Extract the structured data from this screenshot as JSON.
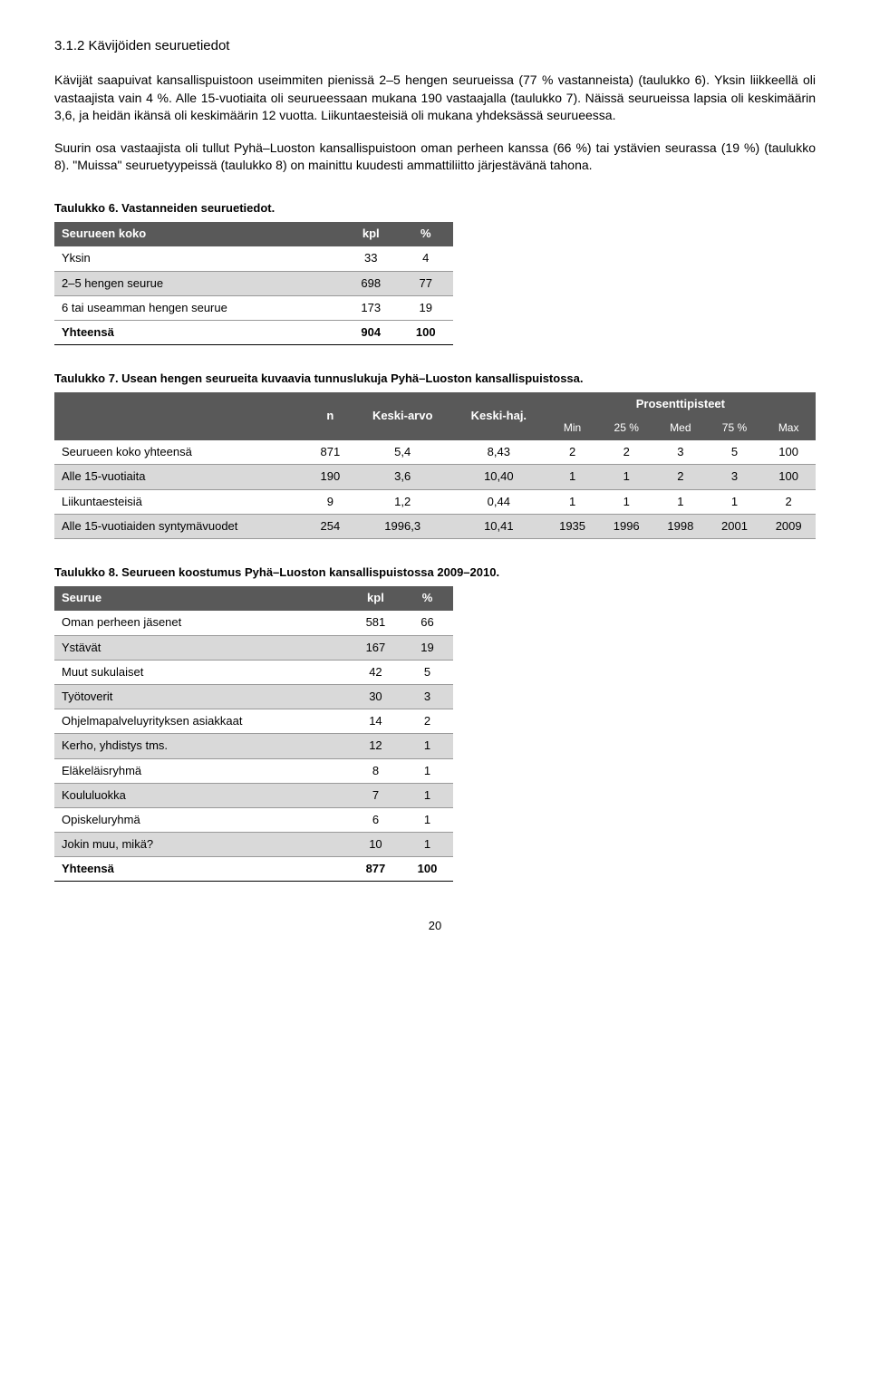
{
  "section": {
    "heading": "3.1.2 Kävijöiden seuruetiedot",
    "para1": "Kävijät saapuivat kansallispuistoon useimmiten pienissä 2–5 hengen seurueissa (77 % vastanneista) (taulukko 6). Yksin liikkeellä oli vastaajista vain 4 %. Alle 15-vuotiaita oli seurueessaan mukana 190 vastaajalla (taulukko 7). Näissä seurueissa lapsia oli keskimäärin 3,6, ja heidän ikänsä oli keskimäärin 12 vuotta. Liikuntaesteisiä oli mukana yhdeksässä seurueessa.",
    "para2": "Suurin osa vastaajista oli tullut Pyhä–Luoston kansallispuistoon oman perheen kanssa (66 %) tai ystävien seurassa (19 %) (taulukko 8). \"Muissa\" seuruetyypeissä (taulukko 8) on mainittu kuudesti ammattiliitto järjestävänä tahona."
  },
  "table6": {
    "caption": "Taulukko 6. Vastanneiden seuruetiedot.",
    "headers": [
      "Seurueen koko",
      "kpl",
      "%"
    ],
    "rows": [
      {
        "label": "Yksin",
        "kpl": "33",
        "pct": "4",
        "shade": false
      },
      {
        "label": "2–5 hengen seurue",
        "kpl": "698",
        "pct": "77",
        "shade": true
      },
      {
        "label": "6 tai useamman hengen seurue",
        "kpl": "173",
        "pct": "19",
        "shade": false
      }
    ],
    "total": {
      "label": "Yhteensä",
      "kpl": "904",
      "pct": "100"
    }
  },
  "table7": {
    "caption": "Taulukko 7. Usean hengen seurueita kuvaavia tunnuslukuja Pyhä–Luoston kansallispuistossa.",
    "top_headers": {
      "n": "n",
      "mean": "Keski-arvo",
      "sd": "Keski-haj.",
      "pct": "Prosenttipisteet"
    },
    "sub_headers": [
      "Min",
      "25 %",
      "Med",
      "75 %",
      "Max"
    ],
    "rows": [
      {
        "label": "Seurueen koko yhteensä",
        "n": "871",
        "mean": "5,4",
        "sd": "8,43",
        "min": "2",
        "p25": "2",
        "med": "3",
        "p75": "5",
        "max": "100",
        "shade": false
      },
      {
        "label": "Alle 15-vuotiaita",
        "n": "190",
        "mean": "3,6",
        "sd": "10,40",
        "min": "1",
        "p25": "1",
        "med": "2",
        "p75": "3",
        "max": "100",
        "shade": true
      },
      {
        "label": "Liikuntaesteisiä",
        "n": "9",
        "mean": "1,2",
        "sd": "0,44",
        "min": "1",
        "p25": "1",
        "med": "1",
        "p75": "1",
        "max": "2",
        "shade": false
      },
      {
        "label": "Alle 15-vuotiaiden syntymävuodet",
        "n": "254",
        "mean": "1996,3",
        "sd": "10,41",
        "min": "1935",
        "p25": "1996",
        "med": "1998",
        "p75": "2001",
        "max": "2009",
        "shade": true
      }
    ]
  },
  "table8": {
    "caption": "Taulukko 8. Seurueen koostumus Pyhä–Luoston kansallispuistossa 2009–2010.",
    "headers": [
      "Seurue",
      "kpl",
      "%"
    ],
    "rows": [
      {
        "label": "Oman perheen jäsenet",
        "kpl": "581",
        "pct": "66",
        "shade": false
      },
      {
        "label": "Ystävät",
        "kpl": "167",
        "pct": "19",
        "shade": true
      },
      {
        "label": "Muut sukulaiset",
        "kpl": "42",
        "pct": "5",
        "shade": false
      },
      {
        "label": "Työtoverit",
        "kpl": "30",
        "pct": "3",
        "shade": true
      },
      {
        "label": "Ohjelmapalveluyrityksen asiakkaat",
        "kpl": "14",
        "pct": "2",
        "shade": false
      },
      {
        "label": "Kerho, yhdistys tms.",
        "kpl": "12",
        "pct": "1",
        "shade": true
      },
      {
        "label": "Eläkeläisryhmä",
        "kpl": "8",
        "pct": "1",
        "shade": false
      },
      {
        "label": "Koululuokka",
        "kpl": "7",
        "pct": "1",
        "shade": true
      },
      {
        "label": "Opiskeluryhmä",
        "kpl": "6",
        "pct": "1",
        "shade": false
      },
      {
        "label": "Jokin muu, mikä?",
        "kpl": "10",
        "pct": "1",
        "shade": true
      }
    ],
    "total": {
      "label": "Yhteensä",
      "kpl": "877",
      "pct": "100"
    }
  },
  "page_number": "20"
}
